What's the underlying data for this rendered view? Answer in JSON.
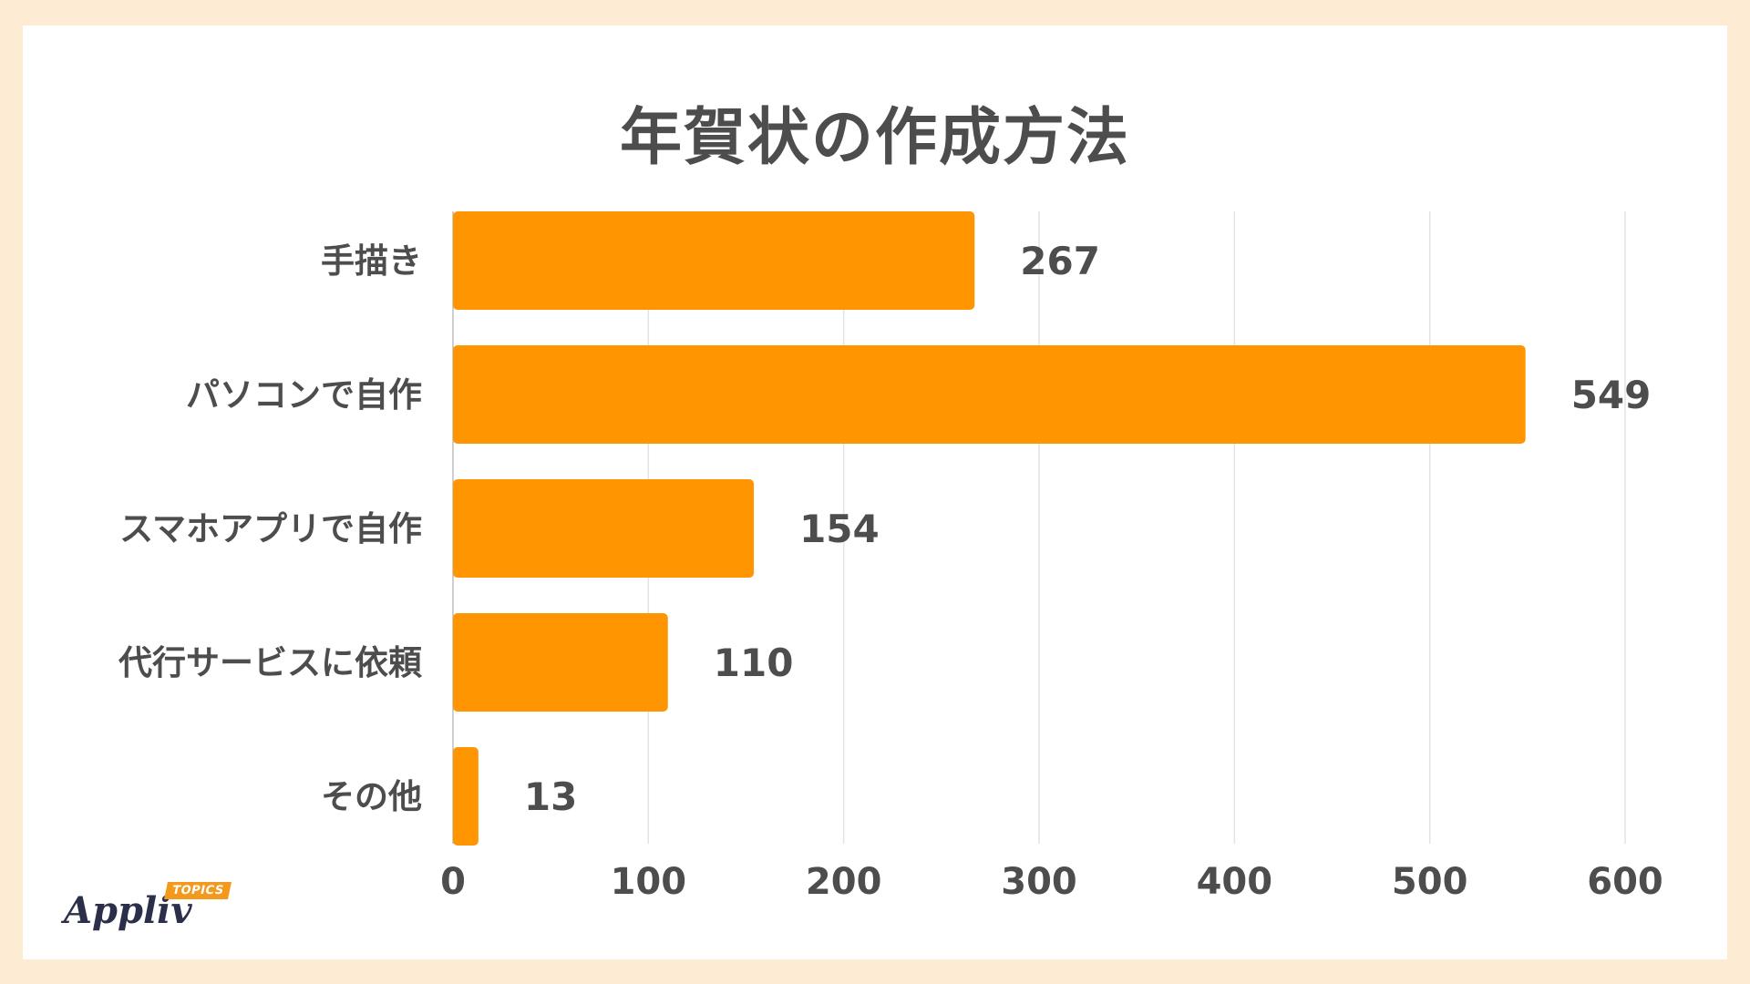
{
  "chart_data": {
    "type": "bar",
    "orientation": "horizontal",
    "title": "年賀状の作成方法",
    "categories": [
      "手描き",
      "パソコンで自作",
      "スマホアプリで自作",
      "代行サービスに依頼",
      "その他"
    ],
    "values": [
      267,
      549,
      154,
      110,
      13
    ],
    "xlim": [
      0,
      600
    ],
    "xticks": [
      "0",
      "100",
      "200",
      "300",
      "400",
      "500",
      "600"
    ],
    "grid": true,
    "bar_color": "#FF9500",
    "text_color": "#4D4D4D",
    "grid_color": "#E3E3E3"
  },
  "logo": {
    "word": "Appliv",
    "badge": "TOPICS"
  }
}
